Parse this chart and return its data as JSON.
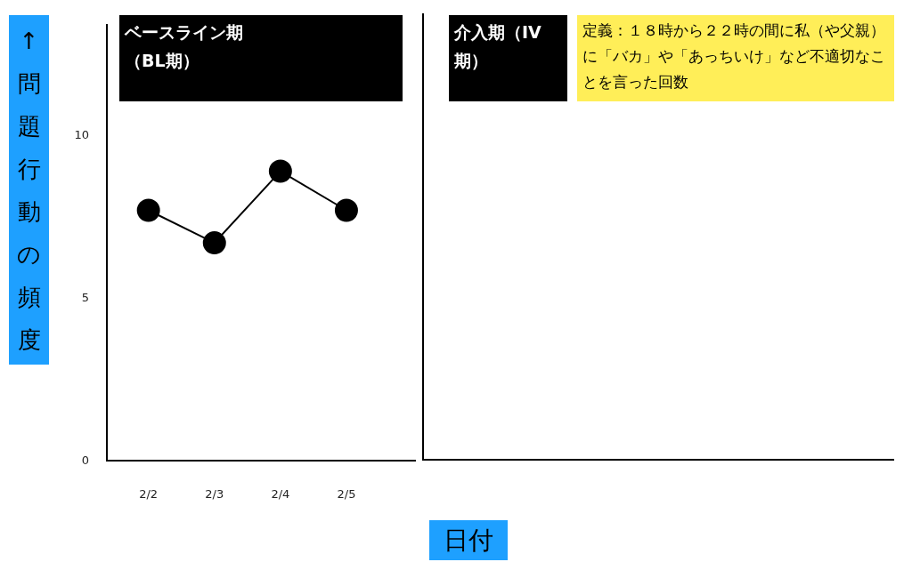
{
  "chart_data": {
    "type": "line",
    "xlabel": "日付",
    "ylabel": "↑問題行動の頻度",
    "categories": [
      "2/2",
      "2/3",
      "2/4",
      "2/5"
    ],
    "series": [
      {
        "color": "#000000",
        "values": [
          7.7,
          6.7,
          8.9,
          7.7
        ]
      }
    ],
    "ylim": [
      0,
      13.4
    ],
    "yticks": [
      0,
      5,
      10
    ],
    "grid": false,
    "legend": false,
    "marker": "circle",
    "line_style": "solid",
    "annotations": [
      "ベースライン期（BL期）",
      "介入期（IV期）",
      "定義：１８時から２２時の間に私（や父親）に「バカ」や「あっちいけ」など不適切なことを言った回数"
    ]
  }
}
